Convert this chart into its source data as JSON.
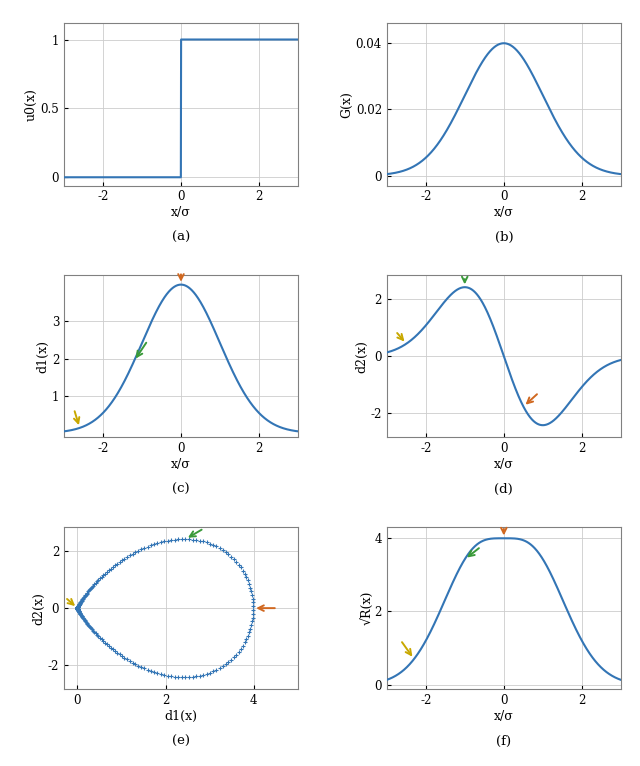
{
  "x_range": [
    -3.2,
    3.2
  ],
  "n_points": 1000,
  "scale_d": 10.0,
  "line_color": "#3375b5",
  "arrow_orange": "#d06820",
  "arrow_green": "#3a9a3a",
  "arrow_yellow": "#c8a800",
  "title_a": "(a)",
  "title_b": "(b)",
  "title_c": "(c)",
  "title_d": "(d)",
  "title_e": "(e)",
  "title_f": "(f)",
  "xlabel_norm": "x/σ",
  "xlabel_e": "d1(x)",
  "ylabel_a": "u0(x)",
  "ylabel_b": "G(x)",
  "ylabel_c": "d1(x)",
  "ylabel_d": "d2(x)",
  "ylabel_e": "d2(x)",
  "ylabel_f": "√R(x)",
  "figsize": [
    6.4,
    7.66
  ],
  "dpi": 100,
  "bg_color": "#f8f8f8",
  "ax_bg": "#ffffff",
  "grid_color": "#cccccc",
  "spine_color": "#808080",
  "label_fontsize": 9,
  "tick_fontsize": 8.5,
  "title_fontsize": 9.5
}
